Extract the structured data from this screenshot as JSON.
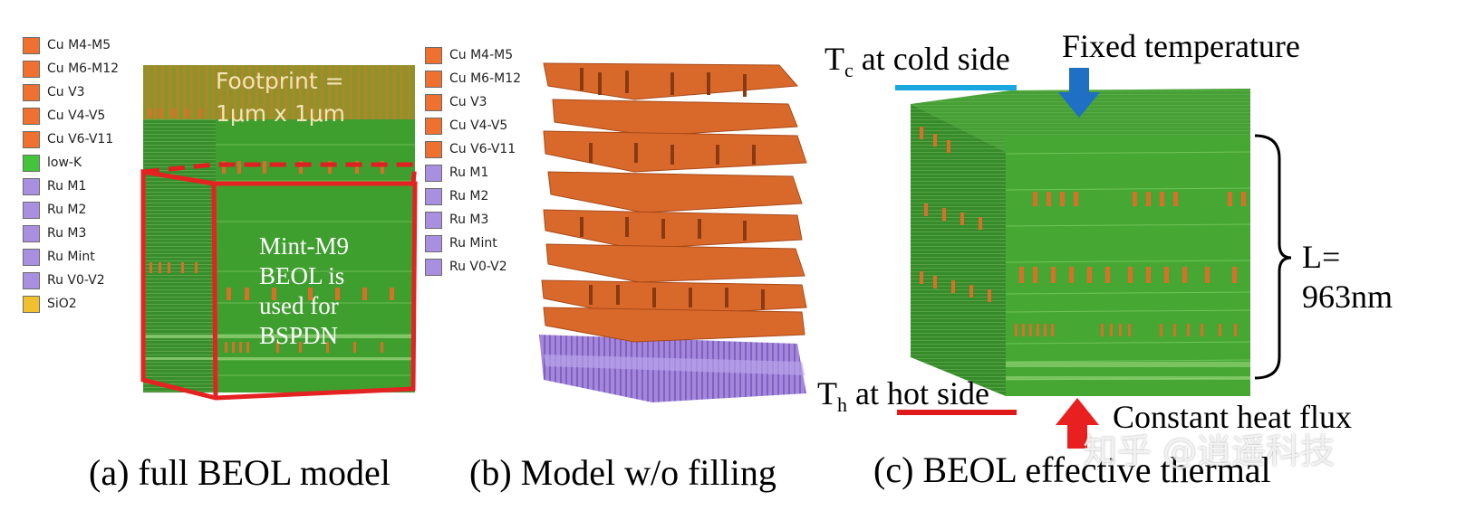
{
  "panel_a": {
    "legend": [
      {
        "label": "Cu M4-M5",
        "color": "#f07030"
      },
      {
        "label": "Cu M6-M12",
        "color": "#f07030"
      },
      {
        "label": "Cu V3",
        "color": "#f07030"
      },
      {
        "label": "Cu V4-V5",
        "color": "#f07030"
      },
      {
        "label": "Cu V6-V11",
        "color": "#f07030"
      },
      {
        "label": "low-K",
        "color": "#43c43a"
      },
      {
        "label": "Ru M1",
        "color": "#a98fe0"
      },
      {
        "label": "Ru M2",
        "color": "#a98fe0"
      },
      {
        "label": "Ru M3",
        "color": "#a98fe0"
      },
      {
        "label": "Ru Mint",
        "color": "#a98fe0"
      },
      {
        "label": "Ru V0-V2",
        "color": "#a98fe0"
      },
      {
        "label": "SiO2",
        "color": "#f0c030"
      }
    ],
    "footprint_lines": [
      "Footprint =",
      "1μm x 1μm"
    ],
    "bspdn_lines": [
      "Mint-M9",
      "BEOL is",
      "used for",
      "BSPDN"
    ],
    "caption": "(a) full BEOL model"
  },
  "panel_b": {
    "legend": [
      {
        "label": "Cu M4-M5",
        "color": "#f07030"
      },
      {
        "label": "Cu M6-M12",
        "color": "#f07030"
      },
      {
        "label": "Cu V3",
        "color": "#f07030"
      },
      {
        "label": "Cu V4-V5",
        "color": "#f07030"
      },
      {
        "label": "Cu V6-V11",
        "color": "#f07030"
      },
      {
        "label": "Ru M1",
        "color": "#a98fe0"
      },
      {
        "label": "Ru M2",
        "color": "#a98fe0"
      },
      {
        "label": "Ru M3",
        "color": "#a98fe0"
      },
      {
        "label": "Ru Mint",
        "color": "#a98fe0"
      },
      {
        "label": "Ru V0-V2",
        "color": "#a98fe0"
      }
    ],
    "caption": "(b) Model w/o filling"
  },
  "panel_c": {
    "tc_symbol": "T",
    "tc_subscript": "c",
    "tc_text": " at cold side",
    "th_symbol": "T",
    "th_subscript": "h",
    "th_text": " at hot side",
    "fixed_temperature": "Fixed temperature",
    "heat_flux": "Constant heat flux",
    "length_line1": "L=",
    "length_line2": "963nm",
    "caption": "(c) BEOL effective thermal",
    "cold_color": "#1aa7e0",
    "hot_color": "#e01919"
  },
  "watermark": "知乎 @逍遥科技"
}
